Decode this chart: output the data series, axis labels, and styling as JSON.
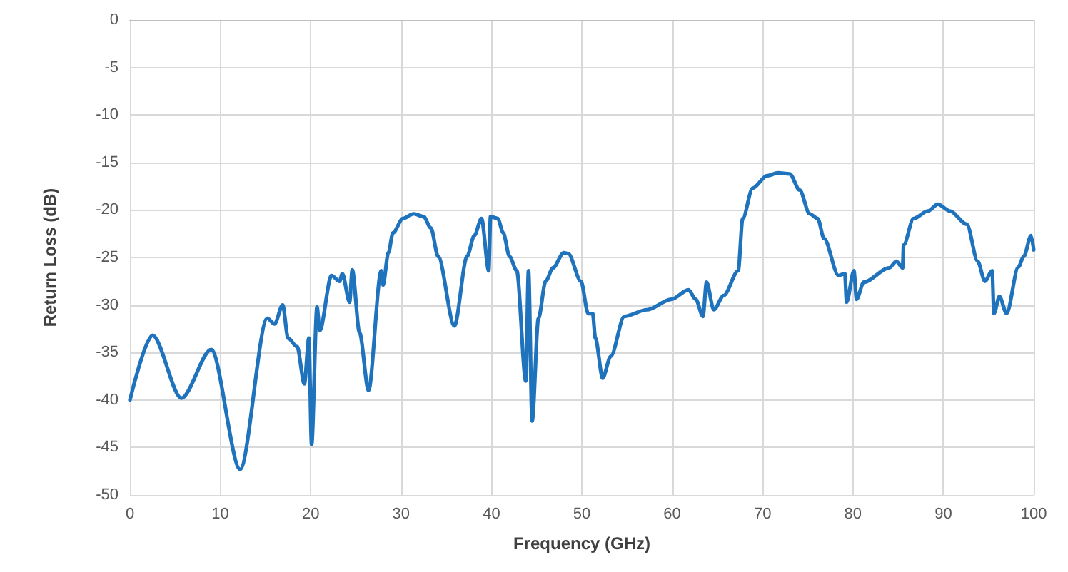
{
  "chart_data": {
    "type": "line",
    "xlabel": "Frequency (GHz)",
    "ylabel": "Return Loss (dB)",
    "xlim": [
      0,
      100
    ],
    "xticks": [
      0,
      10,
      20,
      30,
      40,
      50,
      60,
      70,
      80,
      90,
      100
    ],
    "ylim": [
      -50,
      0
    ],
    "yticks": [
      -50,
      -45,
      -40,
      -35,
      -30,
      -25,
      -20,
      -15,
      -10,
      -5,
      0
    ],
    "grid": true,
    "marker": "none",
    "line_style": "solid",
    "series": [
      {
        "color": "#1f73bd",
        "x": [
          0,
          2.5,
          5.7,
          9,
          12.2,
          15.2,
          16,
          16.9,
          17.5,
          18.5,
          19.3,
          19.8,
          20.1,
          20.7,
          21,
          22.3,
          23.2,
          23.5,
          24.3,
          24.6,
          25.4,
          26.4,
          27.8,
          28,
          28.6,
          29.1,
          30.2,
          31.4,
          32.5,
          33.3,
          34.1,
          35.9,
          37.3,
          38.1,
          38.9,
          39.7,
          39.9,
          40.7,
          41.3,
          42,
          42.8,
          43.8,
          44.1,
          44.5,
          45.2,
          46,
          46.8,
          48,
          48.5,
          49.9,
          50.7,
          51.2,
          51.5,
          52.3,
          53.2,
          54.7,
          57.2,
          59.9,
          61.8,
          62.6,
          63.4,
          63.8,
          64.6,
          65.7,
          67.3,
          67.8,
          68.9,
          70.5,
          71.7,
          73,
          74.1,
          75.2,
          76.1,
          76.8,
          78.4,
          79.1,
          79.3,
          80.1,
          80.4,
          81.2,
          84,
          84.8,
          85.5,
          85.6,
          86.7,
          88.3,
          89.4,
          90.7,
          92.6,
          93.8,
          94.6,
          95.4,
          95.6,
          96.2,
          97,
          98.3,
          98.9,
          99.7,
          100
        ],
        "values": [
          -40,
          -33.2,
          -39.8,
          -34.7,
          -47.3,
          -31.4,
          -32,
          -30,
          -33.5,
          -34.4,
          -38.3,
          -33.5,
          -44.7,
          -30.2,
          -32.7,
          -26.9,
          -27.5,
          -26.7,
          -29.7,
          -26.3,
          -32.9,
          -39,
          -26.4,
          -27.9,
          -24.5,
          -22.4,
          -20.9,
          -20.4,
          -20.7,
          -21.9,
          -24.9,
          -32.2,
          -24.9,
          -22.7,
          -20.9,
          -26.4,
          -20.7,
          -20.9,
          -22.4,
          -24.9,
          -26.4,
          -38,
          -26.4,
          -42.2,
          -31.4,
          -27.5,
          -26.1,
          -24.5,
          -24.6,
          -27.5,
          -30.9,
          -30.9,
          -33.5,
          -37.7,
          -35.4,
          -31.2,
          -30.5,
          -29.4,
          -28.4,
          -29.4,
          -31.2,
          -27.6,
          -30.5,
          -29,
          -26.4,
          -20.9,
          -17.7,
          -16.4,
          -16.1,
          -16.2,
          -17.9,
          -20.4,
          -20.9,
          -23,
          -26.9,
          -26.7,
          -29.7,
          -26.4,
          -29.4,
          -27.6,
          -26.1,
          -25.4,
          -26.1,
          -23.7,
          -20.9,
          -20.1,
          -19.4,
          -20.1,
          -21.5,
          -25.4,
          -27.5,
          -26.4,
          -30.9,
          -29.1,
          -30.9,
          -26,
          -24.9,
          -22.7,
          -24.2
        ]
      }
    ]
  }
}
